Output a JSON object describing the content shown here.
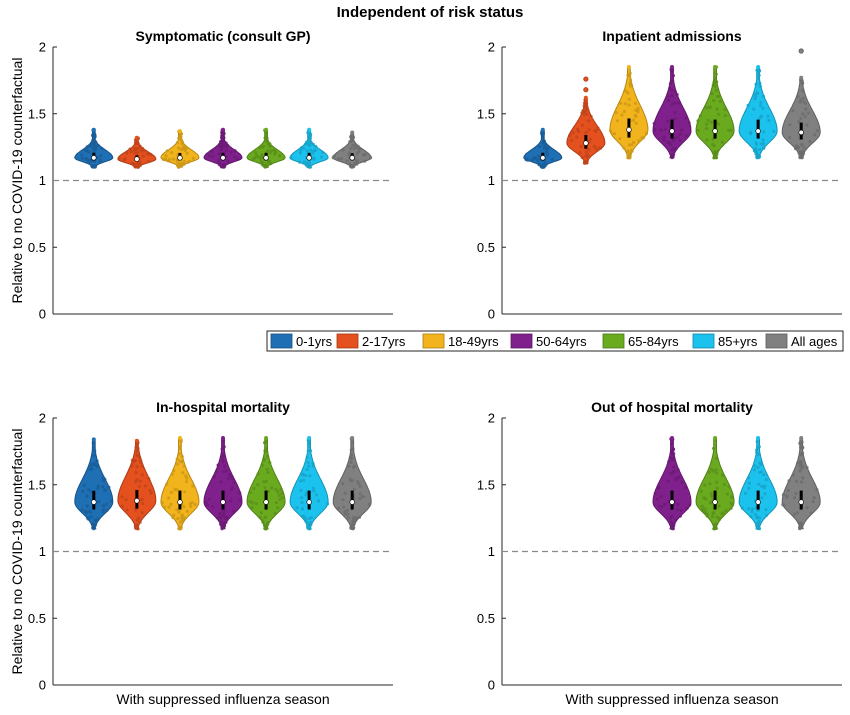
{
  "figure_title": "Independent of risk status",
  "ylabel": "Relative to no COVID-19 counterfactual",
  "xlabel": "With suppressed influenza season",
  "legend": [
    {
      "label": "0-1yrs",
      "color": "#1f6fb4"
    },
    {
      "label": "2-17yrs",
      "color": "#e4501e"
    },
    {
      "label": "18-49yrs",
      "color": "#f2b41c"
    },
    {
      "label": "50-64yrs",
      "color": "#80208c"
    },
    {
      "label": "65-84yrs",
      "color": "#6aaa1f"
    },
    {
      "label": "85+yrs",
      "color": "#1cc2ee"
    },
    {
      "label": "All ages",
      "color": "#808080"
    }
  ],
  "chart_data": [
    {
      "type": "violin",
      "title": "Symptomatic (consult GP)",
      "ylabel": "Relative to no COVID-19 counterfactual",
      "xlabel": "",
      "ylim": [
        0,
        2
      ],
      "yticks": [
        "0",
        "0.5",
        "1",
        "1.5",
        "2"
      ],
      "reference_line": 1,
      "series": [
        {
          "name": "0-1yrs",
          "median": 1.17,
          "min": 1.1,
          "max": 1.38,
          "outliers": []
        },
        {
          "name": "2-17yrs",
          "median": 1.16,
          "min": 1.1,
          "max": 1.32,
          "outliers": []
        },
        {
          "name": "18-49yrs",
          "median": 1.17,
          "min": 1.1,
          "max": 1.37,
          "outliers": []
        },
        {
          "name": "50-64yrs",
          "median": 1.17,
          "min": 1.1,
          "max": 1.38,
          "outliers": []
        },
        {
          "name": "65-84yrs",
          "median": 1.17,
          "min": 1.1,
          "max": 1.38,
          "outliers": []
        },
        {
          "name": "85+yrs",
          "median": 1.17,
          "min": 1.1,
          "max": 1.38,
          "outliers": []
        },
        {
          "name": "All ages",
          "median": 1.17,
          "min": 1.1,
          "max": 1.36,
          "outliers": []
        }
      ]
    },
    {
      "type": "violin",
      "title": "Inpatient admissions",
      "ylabel": "",
      "xlabel": "",
      "ylim": [
        0,
        2
      ],
      "yticks": [
        "0",
        "0.5",
        "1",
        "1.5",
        "2"
      ],
      "reference_line": 1,
      "series": [
        {
          "name": "0-1yrs",
          "median": 1.17,
          "min": 1.1,
          "max": 1.38,
          "outliers": []
        },
        {
          "name": "2-17yrs",
          "median": 1.28,
          "min": 1.13,
          "max": 1.62,
          "outliers": [
            1.68,
            1.76
          ]
        },
        {
          "name": "18-49yrs",
          "median": 1.38,
          "min": 1.17,
          "max": 1.85,
          "outliers": []
        },
        {
          "name": "50-64yrs",
          "median": 1.37,
          "min": 1.17,
          "max": 1.85,
          "outliers": []
        },
        {
          "name": "65-84yrs",
          "median": 1.37,
          "min": 1.17,
          "max": 1.85,
          "outliers": []
        },
        {
          "name": "85+yrs",
          "median": 1.37,
          "min": 1.17,
          "max": 1.85,
          "outliers": []
        },
        {
          "name": "All ages",
          "median": 1.36,
          "min": 1.17,
          "max": 1.77,
          "outliers": [
            1.97
          ]
        }
      ]
    },
    {
      "type": "violin",
      "title": "In-hospital mortality",
      "ylabel": "Relative to no COVID-19 counterfactual",
      "xlabel": "With suppressed influenza season",
      "ylim": [
        0,
        2
      ],
      "yticks": [
        "0",
        "0.5",
        "1",
        "1.5",
        "2"
      ],
      "reference_line": 1,
      "series": [
        {
          "name": "0-1yrs",
          "median": 1.37,
          "min": 1.17,
          "max": 1.84,
          "outliers": []
        },
        {
          "name": "2-17yrs",
          "median": 1.38,
          "min": 1.17,
          "max": 1.83,
          "outliers": []
        },
        {
          "name": "18-49yrs",
          "median": 1.37,
          "min": 1.17,
          "max": 1.85,
          "outliers": []
        },
        {
          "name": "50-64yrs",
          "median": 1.37,
          "min": 1.17,
          "max": 1.85,
          "outliers": []
        },
        {
          "name": "65-84yrs",
          "median": 1.37,
          "min": 1.17,
          "max": 1.85,
          "outliers": []
        },
        {
          "name": "85+yrs",
          "median": 1.37,
          "min": 1.17,
          "max": 1.85,
          "outliers": []
        },
        {
          "name": "All ages",
          "median": 1.37,
          "min": 1.17,
          "max": 1.85,
          "outliers": []
        }
      ]
    },
    {
      "type": "violin",
      "title": "Out of hospital mortality",
      "ylabel": "",
      "xlabel": "With suppressed influenza season",
      "ylim": [
        0,
        2
      ],
      "yticks": [
        "0",
        "0.5",
        "1",
        "1.5",
        "2"
      ],
      "reference_line": 1,
      "series": [
        {
          "name": "0-1yrs",
          "median": null,
          "min": null,
          "max": null,
          "outliers": []
        },
        {
          "name": "2-17yrs",
          "median": null,
          "min": null,
          "max": null,
          "outliers": []
        },
        {
          "name": "18-49yrs",
          "median": null,
          "min": null,
          "max": null,
          "outliers": []
        },
        {
          "name": "50-64yrs",
          "median": 1.37,
          "min": 1.17,
          "max": 1.85,
          "outliers": []
        },
        {
          "name": "65-84yrs",
          "median": 1.37,
          "min": 1.17,
          "max": 1.85,
          "outliers": []
        },
        {
          "name": "85+yrs",
          "median": 1.37,
          "min": 1.17,
          "max": 1.85,
          "outliers": []
        },
        {
          "name": "All ages",
          "median": 1.37,
          "min": 1.17,
          "max": 1.85,
          "outliers": []
        }
      ]
    }
  ]
}
